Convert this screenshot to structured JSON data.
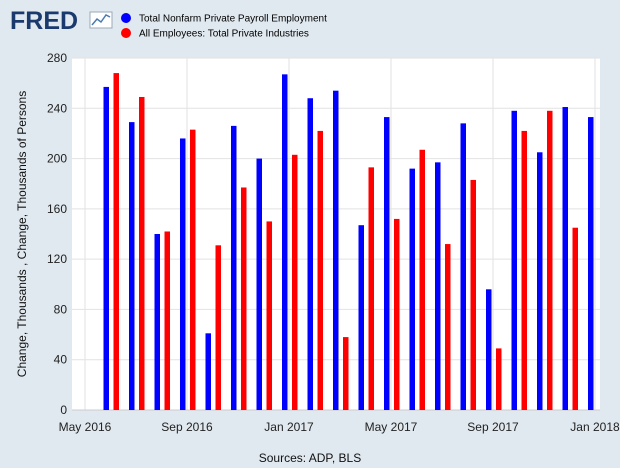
{
  "brand": {
    "logo_text": "FRED",
    "logo_color": "#1a3a6e"
  },
  "legend": {
    "items": [
      {
        "label": "Total Nonfarm Private Payroll Employment",
        "color": "#0000ff"
      },
      {
        "label": "All Employees: Total Private Industries",
        "color": "#ff0000"
      }
    ]
  },
  "source": "Sources: ADP, BLS",
  "chart_data": {
    "type": "bar",
    "ylabel": "Change, Thousands , Change, Thousands of Persons",
    "ylim": [
      0,
      280
    ],
    "yticks": [
      0,
      40,
      80,
      120,
      160,
      200,
      240,
      280
    ],
    "grid": true,
    "legend_position": "top-left",
    "categories": [
      "2016-06",
      "2016-07",
      "2016-08",
      "2016-09",
      "2016-10",
      "2016-11",
      "2016-12",
      "2017-01",
      "2017-02",
      "2017-03",
      "2017-04",
      "2017-05",
      "2017-06",
      "2017-07",
      "2017-08",
      "2017-09",
      "2017-10",
      "2017-11",
      "2017-12",
      "2018-01"
    ],
    "xticks": [
      {
        "label": "May 2016",
        "date": "2016-05"
      },
      {
        "label": "Sep 2016",
        "date": "2016-09"
      },
      {
        "label": "Jan 2017",
        "date": "2017-01"
      },
      {
        "label": "May 2017",
        "date": "2017-05"
      },
      {
        "label": "Sep 2017",
        "date": "2017-09"
      },
      {
        "label": "Jan 2018",
        "date": "2018-01"
      }
    ],
    "series": [
      {
        "name": "Total Nonfarm Private Payroll Employment",
        "color": "#0000ff",
        "values": [
          257,
          229,
          140,
          216,
          61,
          226,
          200,
          267,
          248,
          254,
          147,
          233,
          192,
          197,
          228,
          96,
          238,
          205,
          241,
          233
        ]
      },
      {
        "name": "All Employees: Total Private Industries",
        "color": "#ff0000",
        "values": [
          268,
          249,
          142,
          223,
          131,
          177,
          150,
          203,
          222,
          58,
          193,
          152,
          207,
          132,
          183,
          49,
          222,
          238,
          145,
          null
        ]
      }
    ]
  }
}
